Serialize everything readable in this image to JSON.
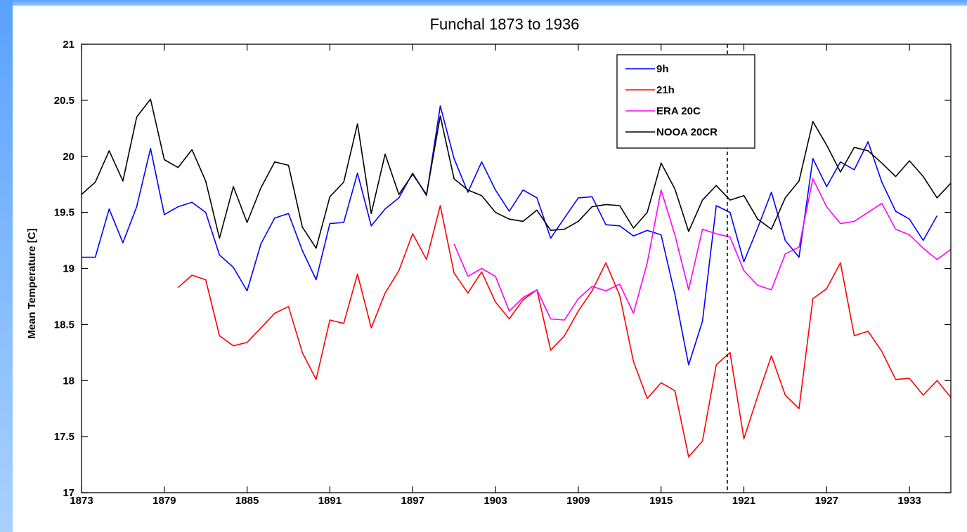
{
  "chart_data": {
    "type": "line",
    "title": "Funchal 1873 to 1936",
    "xlabel": "",
    "ylabel": "Mean Temperature [C]",
    "xlim": [
      1873,
      1936
    ],
    "ylim": [
      17,
      21
    ],
    "xticks": [
      "1873",
      "1879",
      "1885",
      "1891",
      "1897",
      "1903",
      "1909",
      "1915",
      "1921",
      "1927",
      "1933"
    ],
    "yticks": [
      "17",
      "17.5",
      "18",
      "18.5",
      "19",
      "19.5",
      "20",
      "20.5",
      "21"
    ],
    "grid": false,
    "legend_position": "top-right",
    "vertical_marker_year": 1919.8,
    "series": [
      {
        "name": "9h",
        "color": "#0000ff",
        "x": [
          1873,
          1874,
          1875,
          1876,
          1877,
          1878,
          1879,
          1880,
          1881,
          1882,
          1883,
          1884,
          1885,
          1886,
          1887,
          1888,
          1889,
          1890,
          1891,
          1892,
          1893,
          1894,
          1895,
          1896,
          1897,
          1898,
          1899,
          1900,
          1901,
          1902,
          1903,
          1904,
          1905,
          1906,
          1907,
          1908,
          1909,
          1910,
          1911,
          1912,
          1913,
          1914,
          1915,
          1916,
          1917,
          1918,
          1919,
          1920,
          1921,
          1922,
          1923,
          1924,
          1925,
          1926,
          1927,
          1928,
          1929,
          1930,
          1931,
          1932,
          1933,
          1934,
          1935
        ],
        "values": [
          19.1,
          19.1,
          19.53,
          19.23,
          19.55,
          20.07,
          19.48,
          19.55,
          19.59,
          19.5,
          19.12,
          19.01,
          18.8,
          19.22,
          19.45,
          19.49,
          19.16,
          18.9,
          19.4,
          19.41,
          19.85,
          19.38,
          19.53,
          19.63,
          19.85,
          19.65,
          20.45,
          19.98,
          19.68,
          19.95,
          19.7,
          19.51,
          19.7,
          19.63,
          19.27,
          19.45,
          19.63,
          19.64,
          19.39,
          19.38,
          19.29,
          19.34,
          19.3,
          18.77,
          18.14,
          18.53,
          19.56,
          19.5,
          19.06,
          19.36,
          19.68,
          19.25,
          19.1,
          19.98,
          19.73,
          19.95,
          19.88,
          20.13,
          19.77,
          19.51,
          19.44,
          19.25,
          19.47
        ]
      },
      {
        "name": "21h",
        "color": "#ff0000",
        "x": [
          1880,
          1881,
          1882,
          1883,
          1884,
          1885,
          1886,
          1887,
          1888,
          1889,
          1890,
          1891,
          1892,
          1893,
          1894,
          1895,
          1896,
          1897,
          1898,
          1899,
          1900,
          1901,
          1902,
          1903,
          1904,
          1905,
          1906,
          1907,
          1908,
          1909,
          1910,
          1911,
          1912,
          1913,
          1914,
          1915,
          1916,
          1917,
          1918,
          1919,
          1920,
          1921,
          1922,
          1923,
          1924,
          1925,
          1926,
          1927,
          1928,
          1929,
          1930,
          1931,
          1932,
          1933,
          1934,
          1935,
          1936
        ],
        "values": [
          18.83,
          18.94,
          18.9,
          18.4,
          18.31,
          18.34,
          18.47,
          18.6,
          18.66,
          18.25,
          18.01,
          18.54,
          18.51,
          18.95,
          18.47,
          18.78,
          18.98,
          19.31,
          19.08,
          19.56,
          18.96,
          18.78,
          18.97,
          18.7,
          18.55,
          18.72,
          18.81,
          18.27,
          18.4,
          18.62,
          18.8,
          19.05,
          18.76,
          18.17,
          17.84,
          17.98,
          17.91,
          17.32,
          17.46,
          18.14,
          18.25,
          17.48,
          17.86,
          18.22,
          17.87,
          17.75,
          18.73,
          18.82,
          19.05,
          18.4,
          18.44,
          18.26,
          18.01,
          18.02,
          17.87,
          18.0,
          17.85
        ]
      },
      {
        "name": "ERA 20C",
        "color": "#ff00ff",
        "x": [
          1900,
          1901,
          1902,
          1903,
          1904,
          1905,
          1906,
          1907,
          1908,
          1909,
          1910,
          1911,
          1912,
          1913,
          1914,
          1915,
          1916,
          1917,
          1918,
          1919,
          1920,
          1921,
          1922,
          1923,
          1924,
          1925,
          1926,
          1927,
          1928,
          1929,
          1930,
          1931,
          1932,
          1933,
          1934,
          1935,
          1936
        ],
        "values": [
          19.22,
          18.93,
          19.0,
          18.93,
          18.62,
          18.74,
          18.81,
          18.55,
          18.54,
          18.73,
          18.84,
          18.8,
          18.86,
          18.6,
          19.05,
          19.7,
          19.3,
          18.81,
          19.35,
          19.31,
          19.28,
          18.98,
          18.85,
          18.81,
          19.13,
          19.19,
          19.8,
          19.55,
          19.4,
          19.42,
          19.5,
          19.58,
          19.35,
          19.3,
          19.18,
          19.08,
          19.17
        ]
      },
      {
        "name": "NOOA 20CR",
        "color": "#000000",
        "x": [
          1873,
          1874,
          1875,
          1876,
          1877,
          1878,
          1879,
          1880,
          1881,
          1882,
          1883,
          1884,
          1885,
          1886,
          1887,
          1888,
          1889,
          1890,
          1891,
          1892,
          1893,
          1894,
          1895,
          1896,
          1897,
          1898,
          1899,
          1900,
          1901,
          1902,
          1903,
          1904,
          1905,
          1906,
          1907,
          1908,
          1909,
          1910,
          1911,
          1912,
          1913,
          1914,
          1915,
          1916,
          1917,
          1918,
          1919,
          1920,
          1921,
          1922,
          1923,
          1924,
          1925,
          1926,
          1927,
          1928,
          1929,
          1930,
          1931,
          1932,
          1933,
          1934,
          1935,
          1936
        ],
        "values": [
          19.66,
          19.77,
          20.05,
          19.78,
          20.35,
          20.51,
          19.97,
          19.9,
          20.06,
          19.78,
          19.27,
          19.73,
          19.41,
          19.72,
          19.95,
          19.92,
          19.37,
          19.18,
          19.64,
          19.77,
          20.29,
          19.49,
          20.02,
          19.66,
          19.84,
          19.66,
          20.36,
          19.8,
          19.7,
          19.65,
          19.5,
          19.44,
          19.42,
          19.52,
          19.34,
          19.35,
          19.42,
          19.55,
          19.57,
          19.56,
          19.36,
          19.5,
          19.94,
          19.71,
          19.33,
          19.61,
          19.74,
          19.61,
          19.65,
          19.44,
          19.35,
          19.63,
          19.78,
          20.31,
          20.1,
          19.86,
          20.08,
          20.05,
          19.94,
          19.82,
          19.96,
          19.82,
          19.63,
          19.76
        ]
      }
    ]
  }
}
